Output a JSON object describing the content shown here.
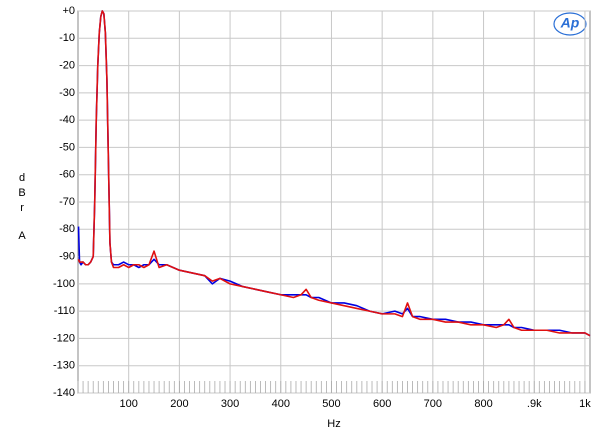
{
  "chart_data": {
    "type": "line",
    "xlabel": "Hz",
    "ylabel": "dBr",
    "ylabel_unit": "A",
    "logo": "Ap",
    "xlim": [
      0,
      1010
    ],
    "ylim": [
      -140,
      0
    ],
    "xticks": [
      100,
      200,
      300,
      400,
      500,
      600,
      700,
      800,
      {
        "value": 900,
        "label": ".9k"
      },
      {
        "value": 1000,
        "label": "1k"
      }
    ],
    "yticks": [
      {
        "value": 0,
        "label": "+0"
      },
      -10,
      -20,
      -30,
      -40,
      -50,
      -60,
      -70,
      -80,
      -90,
      -100,
      -110,
      -120,
      -130,
      -140
    ],
    "grid": true,
    "x": [
      1,
      3,
      6,
      10,
      15,
      20,
      25,
      30,
      33,
      36,
      39,
      42,
      45,
      48,
      51,
      54,
      57,
      60,
      63,
      66,
      70,
      80,
      90,
      100,
      110,
      120,
      130,
      140,
      150,
      160,
      175,
      200,
      225,
      250,
      265,
      280,
      300,
      325,
      350,
      375,
      400,
      425,
      440,
      450,
      460,
      475,
      500,
      525,
      550,
      575,
      600,
      625,
      640,
      650,
      660,
      675,
      700,
      725,
      750,
      775,
      800,
      825,
      840,
      850,
      860,
      875,
      900,
      925,
      950,
      975,
      1000,
      1010
    ],
    "series": [
      {
        "color": "#0000e0",
        "values": [
          -79,
          -92,
          -93,
          -92,
          -93,
          -93,
          -92,
          -90,
          -70,
          -40,
          -20,
          -8,
          -2,
          0,
          -1,
          -8,
          -25,
          -55,
          -85,
          -92,
          -93,
          -93,
          -92,
          -93,
          -93,
          -94,
          -93,
          -93,
          -91,
          -93,
          -93,
          -95,
          -96,
          -97,
          -100,
          -98,
          -99,
          -101,
          -102,
          -103,
          -104,
          -104,
          -104,
          -104,
          -105,
          -105,
          -107,
          -107,
          -108,
          -110,
          -111,
          -110,
          -111,
          -109,
          -112,
          -112,
          -113,
          -113,
          -114,
          -114,
          -115,
          -115,
          -115,
          -115,
          -116,
          -116,
          -117,
          -117,
          -117,
          -118,
          -118,
          -119
        ]
      },
      {
        "color": "#e01010",
        "values": [
          -91,
          -92,
          -92,
          -92,
          -93,
          -93,
          -92,
          -90,
          -70,
          -40,
          -20,
          -8,
          -2,
          0,
          -1,
          -8,
          -25,
          -55,
          -85,
          -92,
          -94,
          -94,
          -93,
          -94,
          -93,
          -93,
          -94,
          -93,
          -88,
          -94,
          -93,
          -95,
          -96,
          -97,
          -99,
          -98,
          -100,
          -101,
          -102,
          -103,
          -104,
          -105,
          -104,
          -102,
          -105,
          -106,
          -107,
          -108,
          -109,
          -110,
          -111,
          -111,
          -112,
          -107,
          -112,
          -113,
          -113,
          -114,
          -114,
          -115,
          -115,
          -116,
          -115,
          -113,
          -116,
          -117,
          -117,
          -117,
          -118,
          -118,
          -118,
          -119
        ]
      }
    ]
  }
}
